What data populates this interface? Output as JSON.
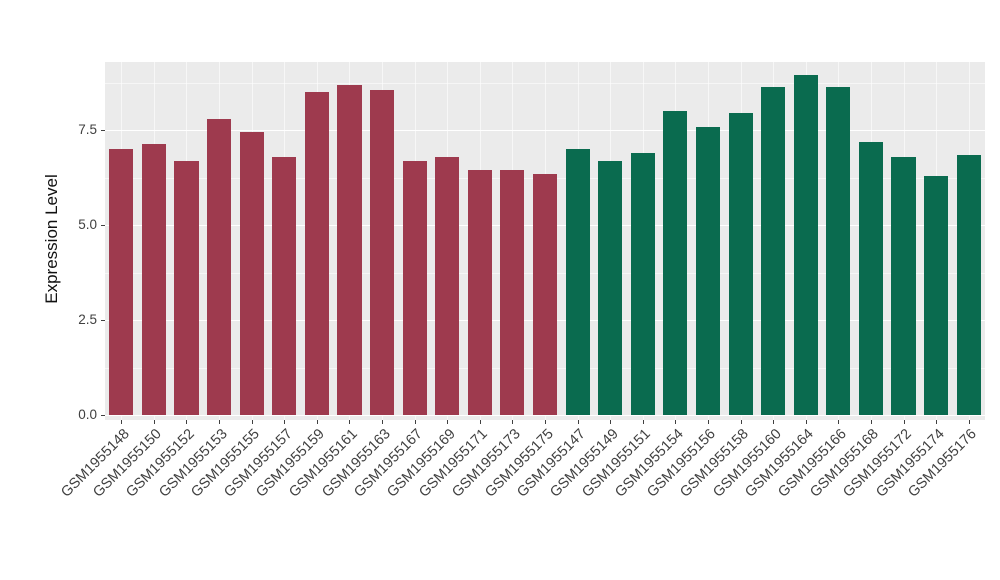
{
  "chart_data": {
    "type": "bar",
    "title": "",
    "xlabel": "",
    "ylabel": "Expression Level",
    "ylim": [
      0,
      9.3
    ],
    "yticks": [
      0,
      2.5,
      5,
      7.5
    ],
    "ytick_labels": [
      "0.0",
      "2.5",
      "5.0",
      "7.5"
    ],
    "minor_ticks": [
      1.25,
      3.75,
      6.25,
      8.75
    ],
    "grid": "on",
    "legend_position": "none",
    "panel_bg": "#EBEBEB",
    "grid_color": "#FFFFFF",
    "groups": [
      {
        "name": "group-left",
        "color": "#9E3A4E"
      },
      {
        "name": "group-right",
        "color": "#0A6B4F"
      }
    ],
    "bars": [
      {
        "label": "GSM1955148",
        "value": 7.0,
        "group": 0
      },
      {
        "label": "GSM1955150",
        "value": 7.15,
        "group": 0
      },
      {
        "label": "GSM1955152",
        "value": 6.7,
        "group": 0
      },
      {
        "label": "GSM1955153",
        "value": 7.8,
        "group": 0
      },
      {
        "label": "GSM1955155",
        "value": 7.45,
        "group": 0
      },
      {
        "label": "GSM1955157",
        "value": 6.8,
        "group": 0
      },
      {
        "label": "GSM1955159",
        "value": 8.5,
        "group": 0
      },
      {
        "label": "GSM1955161",
        "value": 8.7,
        "group": 0
      },
      {
        "label": "GSM1955163",
        "value": 8.55,
        "group": 0
      },
      {
        "label": "GSM1955167",
        "value": 6.7,
        "group": 0
      },
      {
        "label": "GSM1955169",
        "value": 6.8,
        "group": 0
      },
      {
        "label": "GSM1955171",
        "value": 6.45,
        "group": 0
      },
      {
        "label": "GSM1955173",
        "value": 6.45,
        "group": 0
      },
      {
        "label": "GSM1955175",
        "value": 6.35,
        "group": 0
      },
      {
        "label": "GSM1955147",
        "value": 7.0,
        "group": 1
      },
      {
        "label": "GSM1955149",
        "value": 6.7,
        "group": 1
      },
      {
        "label": "GSM1955151",
        "value": 6.9,
        "group": 1
      },
      {
        "label": "GSM1955154",
        "value": 8.0,
        "group": 1
      },
      {
        "label": "GSM1955156",
        "value": 7.6,
        "group": 1
      },
      {
        "label": "GSM1955158",
        "value": 7.95,
        "group": 1
      },
      {
        "label": "GSM1955160",
        "value": 8.65,
        "group": 1
      },
      {
        "label": "GSM1955164",
        "value": 8.95,
        "group": 1
      },
      {
        "label": "GSM1955166",
        "value": 8.65,
        "group": 1
      },
      {
        "label": "GSM1955168",
        "value": 7.2,
        "group": 1
      },
      {
        "label": "GSM1955172",
        "value": 6.8,
        "group": 1
      },
      {
        "label": "GSM1955174",
        "value": 6.3,
        "group": 1
      },
      {
        "label": "GSM1955176",
        "value": 6.85,
        "group": 1
      }
    ]
  }
}
